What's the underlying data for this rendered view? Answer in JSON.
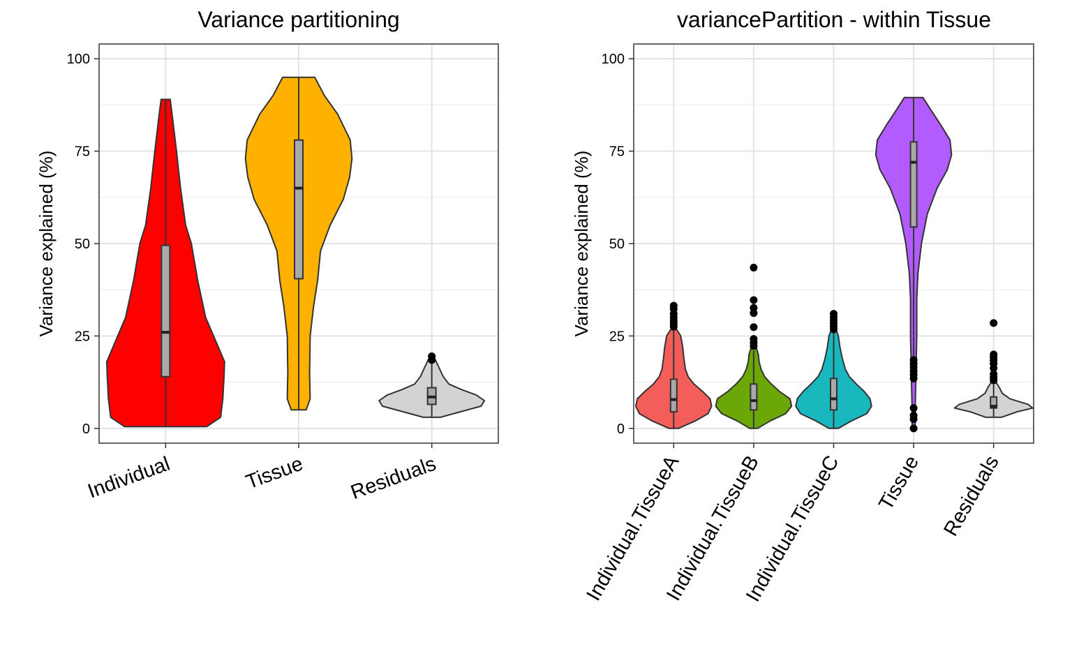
{
  "chart_data": [
    {
      "type": "violin",
      "title": "Variance partitioning",
      "xlabel": "",
      "ylabel": "Variance explained (%)",
      "ylim": [
        -4,
        104
      ],
      "yticks": [
        0,
        25,
        50,
        75,
        100
      ],
      "grid": true,
      "x_label_rotation": -20,
      "categories": [
        "Individual",
        "Tissue",
        "Residuals"
      ],
      "series": [
        {
          "category": "Individual",
          "color": "#FF0000",
          "min": 0.5,
          "q1": 14,
          "median": 26,
          "q3": 49.5,
          "max": 89,
          "density": [
            [
              0.5,
              0.72
            ],
            [
              3,
              0.96
            ],
            [
              8,
              1.0
            ],
            [
              14,
              1.02
            ],
            [
              18,
              1.03
            ],
            [
              22,
              0.92
            ],
            [
              30,
              0.7
            ],
            [
              40,
              0.56
            ],
            [
              50,
              0.45
            ],
            [
              55,
              0.35
            ],
            [
              65,
              0.26
            ],
            [
              75,
              0.19
            ],
            [
              84,
              0.12
            ],
            [
              89,
              0.08
            ]
          ],
          "outliers": []
        },
        {
          "category": "Tissue",
          "color": "#FFB100",
          "min": 5,
          "q1": 40.5,
          "median": 65,
          "q3": 78,
          "max": 95,
          "density": [
            [
              5,
              0.13
            ],
            [
              8,
              0.2
            ],
            [
              15,
              0.19
            ],
            [
              25,
              0.2
            ],
            [
              33,
              0.26
            ],
            [
              40,
              0.33
            ],
            [
              48,
              0.38
            ],
            [
              55,
              0.55
            ],
            [
              62,
              0.78
            ],
            [
              68,
              0.89
            ],
            [
              73,
              0.93
            ],
            [
              78,
              0.9
            ],
            [
              85,
              0.68
            ],
            [
              90,
              0.45
            ],
            [
              95,
              0.28
            ]
          ],
          "outliers": []
        },
        {
          "category": "Residuals",
          "color": "#D3D3D3",
          "min": 3,
          "q1": 6.5,
          "median": 8.5,
          "q3": 11,
          "max": 18,
          "density": [
            [
              3,
              0.15
            ],
            [
              4.5,
              0.5
            ],
            [
              6,
              0.86
            ],
            [
              7.5,
              0.92
            ],
            [
              9,
              0.78
            ],
            [
              10.5,
              0.52
            ],
            [
              12,
              0.3
            ],
            [
              14,
              0.2
            ],
            [
              16,
              0.14
            ],
            [
              18,
              0.08
            ],
            [
              19.5,
              0.03
            ]
          ],
          "outliers": [
            18.5,
            19.5
          ]
        }
      ]
    },
    {
      "type": "violin",
      "title": "variancePartition - within Tissue",
      "xlabel": "",
      "ylabel": "Variance explained (%)",
      "ylim": [
        -4,
        104
      ],
      "yticks": [
        0,
        25,
        50,
        75,
        100
      ],
      "grid": true,
      "x_label_rotation": -60,
      "categories": [
        "Individual.TissueA",
        "Individual.TissueB",
        "Individual.TissueC",
        "Tissue",
        "Residuals"
      ],
      "series": [
        {
          "category": "Individual.TissueA",
          "color": "#F35E5A",
          "min": 0,
          "q1": 4.5,
          "median": 7.8,
          "q3": 13.3,
          "max": 26.5,
          "density": [
            [
              0,
              0.12
            ],
            [
              2,
              0.55
            ],
            [
              4,
              0.88
            ],
            [
              6,
              0.97
            ],
            [
              8,
              0.93
            ],
            [
              10,
              0.74
            ],
            [
              12,
              0.52
            ],
            [
              14,
              0.37
            ],
            [
              16,
              0.3
            ],
            [
              19,
              0.26
            ],
            [
              22,
              0.23
            ],
            [
              25,
              0.18
            ],
            [
              27,
              0.06
            ]
          ],
          "outliers": [
            27.5,
            28.3,
            29.1,
            30.0,
            31.0,
            32.3,
            33.2
          ]
        },
        {
          "category": "Individual.TissueB",
          "color": "#6AA707",
          "min": 0,
          "q1": 5,
          "median": 7.5,
          "q3": 12,
          "max": 21,
          "density": [
            [
              0,
              0.1
            ],
            [
              2,
              0.42
            ],
            [
              4,
              0.82
            ],
            [
              6,
              0.97
            ],
            [
              8,
              0.93
            ],
            [
              10,
              0.66
            ],
            [
              12,
              0.45
            ],
            [
              14,
              0.28
            ],
            [
              16,
              0.19
            ],
            [
              18,
              0.14
            ],
            [
              20,
              0.12
            ],
            [
              22,
              0.06
            ],
            [
              23.5,
              0.02
            ]
          ],
          "outliers": [
            22.3,
            23.2,
            24.2,
            27.4,
            31.2,
            32.6,
            34.7,
            43.5
          ]
        },
        {
          "category": "Individual.TissueC",
          "color": "#19B8BE",
          "min": 0,
          "q1": 5,
          "median": 8,
          "q3": 13.5,
          "max": 26,
          "density": [
            [
              0,
              0.12
            ],
            [
              2,
              0.45
            ],
            [
              4,
              0.85
            ],
            [
              6,
              0.97
            ],
            [
              8,
              0.93
            ],
            [
              10,
              0.78
            ],
            [
              12,
              0.58
            ],
            [
              14,
              0.4
            ],
            [
              16,
              0.3
            ],
            [
              19,
              0.22
            ],
            [
              22,
              0.16
            ],
            [
              25,
              0.12
            ],
            [
              27,
              0.05
            ]
          ],
          "outliers": [
            26.8,
            27.6,
            28.4,
            29.2,
            30.1,
            31.0
          ]
        },
        {
          "category": "Tissue",
          "color": "#B25CFF",
          "min": 19,
          "q1": 54.5,
          "median": 72,
          "q3": 77.5,
          "max": 89.5,
          "density": [
            [
              0,
              0.04
            ],
            [
              5,
              0.04
            ],
            [
              10,
              0.05
            ],
            [
              15,
              0.06
            ],
            [
              20,
              0.07
            ],
            [
              25,
              0.08
            ],
            [
              35,
              0.08
            ],
            [
              42,
              0.11
            ],
            [
              50,
              0.2
            ],
            [
              58,
              0.35
            ],
            [
              65,
              0.6
            ],
            [
              70,
              0.86
            ],
            [
              74,
              0.97
            ],
            [
              78,
              0.93
            ],
            [
              82,
              0.7
            ],
            [
              86,
              0.45
            ],
            [
              89.5,
              0.24
            ]
          ],
          "outliers": [
            0,
            2.5,
            3.5,
            5.5,
            13.5,
            14.5,
            15.5,
            16.5,
            17.5,
            18.5
          ]
        },
        {
          "category": "Residuals",
          "color": "#D3D3D3",
          "min": 3,
          "q1": 5.5,
          "median": 6,
          "q3": 8.5,
          "max": 12.5,
          "density": [
            [
              3,
              0.2
            ],
            [
              4.5,
              0.6
            ],
            [
              5.5,
              1.0
            ],
            [
              6.5,
              0.88
            ],
            [
              8,
              0.42
            ],
            [
              9.5,
              0.22
            ],
            [
              11,
              0.15
            ],
            [
              12.5,
              0.06
            ]
          ],
          "outliers": [
            13.0,
            13.8,
            14.7,
            16.3,
            17.5,
            18.4,
            19.2,
            20.0,
            28.5
          ]
        }
      ]
    }
  ]
}
